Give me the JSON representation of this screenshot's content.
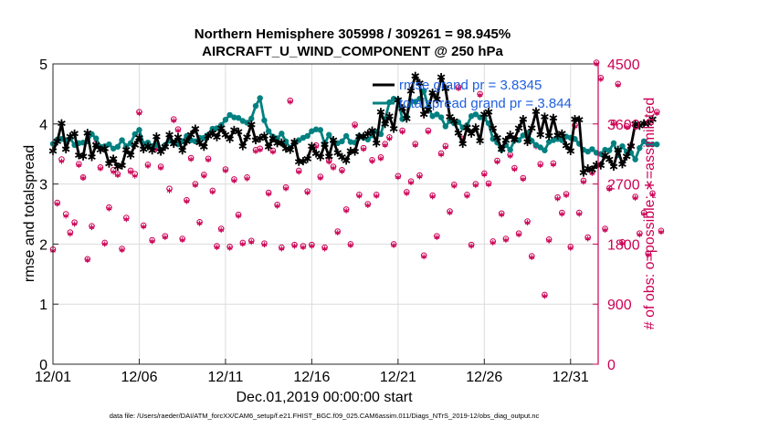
{
  "colors": {
    "rmse": "#000000",
    "spread": "#008080",
    "obs": "#cc0055",
    "grid": "#dcdcdc",
    "legend_text": "#1f5fe0",
    "axis": "#262626"
  },
  "chart_data": {
    "type": "line",
    "title": [
      "Northern Hemisphere 305998 / 309261 = 98.945%",
      "AIRCRAFT_U_WIND_COMPONENT @ 250 hPa"
    ],
    "xlabel": "Dec.01,2019 00:00:00 start",
    "ylabel_left": "rmse and totalspread",
    "ylabel_right": "# of obs: o=possible; ∗=assimilated",
    "xlim": [
      0,
      31.6
    ],
    "ylim_left": [
      0,
      5
    ],
    "ylim_right": [
      0,
      4500
    ],
    "x_ticks": [
      {
        "value": 0,
        "label": "12/01"
      },
      {
        "value": 5,
        "label": "12/06"
      },
      {
        "value": 10,
        "label": "12/11"
      },
      {
        "value": 15,
        "label": "12/16"
      },
      {
        "value": 20,
        "label": "12/21"
      },
      {
        "value": 25,
        "label": "12/26"
      },
      {
        "value": 30,
        "label": "12/31"
      }
    ],
    "y_ticks_left": [
      0,
      1,
      2,
      3,
      4,
      5
    ],
    "y_ticks_right": [
      0,
      900,
      1800,
      2700,
      3600,
      4500
    ],
    "legend": {
      "placement": "top-right",
      "entries": [
        {
          "series": "rmse",
          "label": "rmse grand pr = 3.8345"
        },
        {
          "series": "spread",
          "label": "totalspread grand pr = 3.844"
        }
      ]
    },
    "footer": "data file: /Users/raeder/DAI/ATM_forcXX/CAM6_setup/f.e21.FHIST_BGC.f09_025.CAM6assim.011/Diags_NTrS_2019-12/obs_diag_output.nc",
    "x_step_days": 0.25,
    "rmse": [
      3.55,
      3.71,
      4.01,
      3.58,
      3.79,
      3.84,
      3.48,
      3.46,
      3.85,
      3.45,
      3.65,
      3.57,
      3.59,
      3.34,
      3.42,
      3.29,
      3.31,
      3.57,
      3.48,
      3.65,
      3.77,
      3.58,
      3.63,
      3.56,
      3.79,
      3.54,
      3.62,
      3.82,
      3.67,
      3.78,
      3.56,
      3.71,
      3.82,
      3.92,
      3.69,
      3.62,
      3.8,
      3.85,
      3.78,
      3.93,
      3.82,
      3.75,
      3.9,
      3.87,
      3.63,
      3.78,
      3.99,
      3.73,
      3.76,
      3.8,
      3.62,
      3.76,
      3.68,
      3.69,
      3.59,
      3.57,
      3.7,
      3.37,
      3.38,
      3.42,
      3.63,
      3.51,
      3.45,
      3.66,
      3.46,
      3.73,
      3.52,
      3.45,
      3.39,
      3.55,
      3.54,
      3.79,
      3.79,
      3.84,
      3.89,
      3.68,
      4.2,
      4.0,
      4.13,
      3.92,
      4.4,
      4.26,
      4.09,
      4.55,
      4.8,
      4.68,
      4.16,
      4.24,
      4.52,
      4.41,
      4.78,
      4.59,
      4.12,
      4.05,
      3.85,
      3.67,
      3.94,
      3.84,
      3.94,
      3.72,
      4.16,
      4.2,
      3.93,
      3.77,
      3.58,
      3.73,
      3.82,
      3.74,
      3.93,
      4.08,
      3.7,
      3.93,
      4.21,
      3.82,
      4.12,
      3.8,
      4.1,
      3.81,
      3.84,
      3.64,
      3.55,
      4.08,
      4.07,
      3.19,
      3.26,
      3.24,
      3.32,
      3.31,
      3.48,
      3.41,
      3.29,
      3.57,
      3.33,
      3.46,
      3.63,
      4.0,
      3.97,
      4.01,
      4.01,
      4.08
    ],
    "spread": [
      3.67,
      3.74,
      3.75,
      3.73,
      3.76,
      3.65,
      3.68,
      3.69,
      3.71,
      3.83,
      3.76,
      3.62,
      3.63,
      3.66,
      3.59,
      3.62,
      3.73,
      3.63,
      3.68,
      3.83,
      3.9,
      3.67,
      3.69,
      3.63,
      3.65,
      3.57,
      3.65,
      3.72,
      3.68,
      3.66,
      3.71,
      3.8,
      3.73,
      3.71,
      3.77,
      3.77,
      3.82,
      3.92,
      3.93,
      3.98,
      4.07,
      4.15,
      4.11,
      4.1,
      4.05,
      4.02,
      4.09,
      4.3,
      4.43,
      4.06,
      3.88,
      3.79,
      3.76,
      3.84,
      3.71,
      3.6,
      3.69,
      3.73,
      3.77,
      3.8,
      3.88,
      3.91,
      3.9,
      3.67,
      3.82,
      3.7,
      3.68,
      3.71,
      3.8,
      3.7,
      3.69,
      3.8,
      3.77,
      3.74,
      3.81,
      3.87,
      3.83,
      4.08,
      4.36,
      4.42,
      4.4,
      4.08,
      4.12,
      4.38,
      4.37,
      4.42,
      4.55,
      4.27,
      4.13,
      4.16,
      4.11,
      3.96,
      4.05,
      4.01,
      4.03,
      3.94,
      3.98,
      4.13,
      4.16,
      4.11,
      4.09,
      4.01,
      3.75,
      3.69,
      3.57,
      3.65,
      3.57,
      3.73,
      3.73,
      3.81,
      3.85,
      3.72,
      3.65,
      3.61,
      3.56,
      3.7,
      3.73,
      3.75,
      3.73,
      3.79,
      3.77,
      3.75,
      3.67,
      3.57,
      3.54,
      3.58,
      3.52,
      3.5,
      3.57,
      3.56,
      3.68,
      3.48,
      3.63,
      3.54,
      3.52,
      3.41,
      3.6,
      3.71,
      3.66,
      3.66,
      3.66
    ],
    "obs_possible": [
      1720,
      2420,
      3070,
      2250,
      1975,
      2125,
      3000,
      2800,
      1575,
      2070,
      3310,
      2950,
      1820,
      2350,
      2910,
      2850,
      1730,
      2195,
      2900,
      2850,
      3780,
      2080,
      2990,
      1860,
      3240,
      2960,
      1920,
      2630,
      3670,
      3520,
      1880,
      2460,
      3090,
      2700,
      2130,
      2840,
      3080,
      2600,
      1770,
      2030,
      2920,
      1760,
      2770,
      2240,
      1820,
      2800,
      1850,
      3210,
      3230,
      1810,
      2570,
      3200,
      2390,
      1750,
      2650,
      3950,
      1790,
      2900,
      1770,
      2590,
      1790,
      3280,
      2810,
      1750,
      3050,
      2960,
      1990,
      2910,
      2320,
      1800,
      3590,
      2540,
      3240,
      2400,
      3060,
      2540,
      3100,
      3300,
      3400,
      1800,
      2820,
      3500,
      2580,
      2740,
      3300,
      2830,
      1630,
      3500,
      2530,
      1920,
      3160,
      3270,
      2290,
      2690,
      4150,
      3380,
      2540,
      1790,
      2700,
      4050,
      2860,
      2710,
      1840,
      3050,
      2260,
      1880,
      3140,
      2940,
      1960,
      2790,
      2140,
      1620,
      3280,
      3000,
      1040,
      1870,
      3010,
      2500,
      2270,
      2550,
      1760,
      3580,
      2270,
      2750,
      1900,
      2880,
      4520,
      4290,
      2030,
      2640,
      3620,
      4200,
      1830,
      3570,
      3280,
      2510,
      1960,
      2270,
      1660,
      2560,
      3780,
      2000
    ],
    "obs_assim": [
      1700,
      2400,
      3040,
      2220,
      1950,
      2100,
      2980,
      2790,
      1560,
      2050,
      3290,
      2930,
      1800,
      2330,
      2880,
      2830,
      1710,
      2170,
      2880,
      2820,
      3760,
      2060,
      2970,
      1840,
      3220,
      2940,
      1900,
      2600,
      3650,
      3500,
      1860,
      2440,
      3070,
      2680,
      2110,
      2820,
      3060,
      2580,
      1750,
      2010,
      2900,
      1740,
      2750,
      2220,
      1800,
      2780,
      1830,
      3190,
      3210,
      1790,
      2550,
      3180,
      2370,
      1730,
      2630,
      3930,
      1770,
      2880,
      1750,
      2570,
      1770,
      3260,
      2790,
      1730,
      3030,
      2940,
      1970,
      2890,
      2300,
      1780,
      3570,
      2520,
      3220,
      2380,
      3040,
      2520,
      3080,
      3280,
      3380,
      1780,
      2800,
      3480,
      2560,
      2720,
      3280,
      2810,
      1610,
      3480,
      2510,
      1900,
      3140,
      3250,
      2270,
      2670,
      4130,
      3360,
      2520,
      1770,
      2680,
      4030,
      2840,
      2690,
      1820,
      3030,
      2240,
      1860,
      3120,
      2920,
      1940,
      2770,
      2120,
      1600,
      3260,
      2980,
      1020,
      1850,
      2990,
      2480,
      2250,
      2530,
      1740,
      3560,
      2250,
      2730,
      1880,
      2860,
      4500,
      4270,
      2010,
      2620,
      3600,
      4180,
      1810,
      3550,
      3260,
      2490,
      1940,
      2250,
      1640,
      2540,
      3760,
      1980
    ]
  }
}
